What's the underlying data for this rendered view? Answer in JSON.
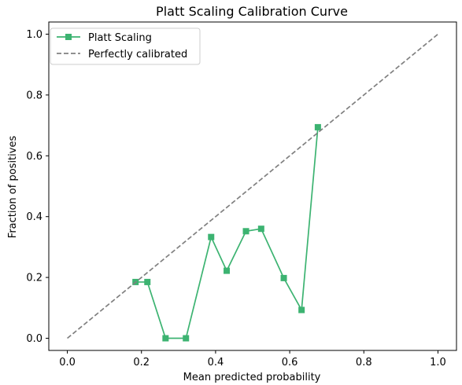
{
  "chart_data": {
    "type": "line",
    "title": "Platt Scaling Calibration Curve",
    "xlabel": "Mean predicted probability",
    "ylabel": "Fraction of positives",
    "xlim": [
      -0.05,
      1.05
    ],
    "ylim": [
      -0.04,
      1.04
    ],
    "xticks": [
      0.0,
      0.2,
      0.4,
      0.6,
      0.8,
      1.0
    ],
    "yticks": [
      0.0,
      0.2,
      0.4,
      0.6,
      0.8,
      1.0
    ],
    "xtick_labels": [
      "0.0",
      "0.2",
      "0.4",
      "0.6",
      "0.8",
      "1.0"
    ],
    "ytick_labels": [
      "0.0",
      "0.2",
      "0.4",
      "0.6",
      "0.8",
      "1.0"
    ],
    "grid": false,
    "legend_position": "top-left",
    "series": [
      {
        "name": "Platt Scaling",
        "style": "solid",
        "marker": "square",
        "color": "#3cb371",
        "x": [
          0.184,
          0.216,
          0.265,
          0.32,
          0.388,
          0.43,
          0.482,
          0.523,
          0.584,
          0.632,
          0.676
        ],
        "y": [
          0.185,
          0.185,
          0.0,
          0.0,
          0.333,
          0.222,
          0.352,
          0.36,
          0.198,
          0.093,
          0.694
        ]
      },
      {
        "name": "Perfectly calibrated",
        "style": "dashed",
        "marker": "none",
        "color": "#808080",
        "x": [
          0.0,
          1.0
        ],
        "y": [
          0.0,
          1.0
        ]
      }
    ]
  }
}
